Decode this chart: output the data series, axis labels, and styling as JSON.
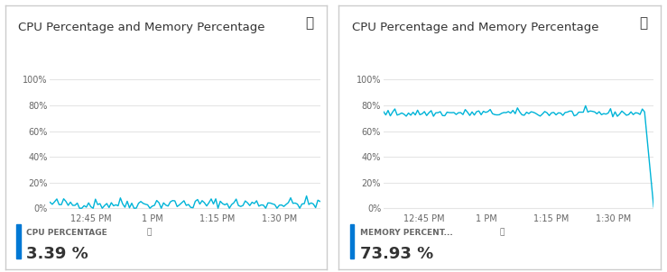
{
  "title": "CPU Percentage and Memory Percentage",
  "panel1_label": "CPU PERCENTAGE",
  "panel1_value": "3.39 %",
  "panel2_label": "MEMORY PERCENT...",
  "panel2_value": "73.93 %",
  "line_color": "#00B4D8",
  "background_color": "#FFFFFF",
  "border_color": "#CCCCCC",
  "grid_color": "#E5E5E5",
  "text_color": "#333333",
  "label_color": "#666666",
  "ytick_labels": [
    "0%",
    "20%",
    "40%",
    "60%",
    "80%",
    "100%"
  ],
  "ytick_values": [
    0,
    20,
    40,
    60,
    80,
    100
  ],
  "xtick_labels": [
    "12:45 PM",
    "1 PM",
    "1:15 PM",
    "1:30 PM"
  ],
  "cpu_base": 3.39,
  "cpu_noise": 2.5,
  "mem_base": 73.93,
  "mem_noise": 1.5,
  "n_points": 120,
  "drop_index": 115,
  "accent_bar_color": "#0078D4",
  "pin_color": "#333333"
}
